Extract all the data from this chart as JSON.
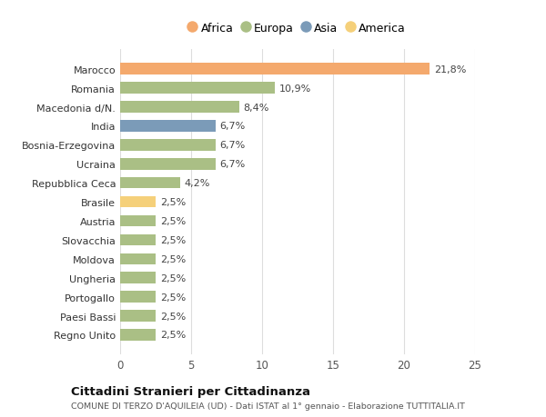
{
  "categories": [
    "Marocco",
    "Romania",
    "Macedonia d/N.",
    "India",
    "Bosnia-Erzegovina",
    "Ucraina",
    "Repubblica Ceca",
    "Brasile",
    "Austria",
    "Slovacchia",
    "Moldova",
    "Ungheria",
    "Portogallo",
    "Paesi Bassi",
    "Regno Unito"
  ],
  "values": [
    21.8,
    10.9,
    8.4,
    6.7,
    6.7,
    6.7,
    4.2,
    2.5,
    2.5,
    2.5,
    2.5,
    2.5,
    2.5,
    2.5,
    2.5
  ],
  "labels": [
    "21,8%",
    "10,9%",
    "8,4%",
    "6,7%",
    "6,7%",
    "6,7%",
    "4,2%",
    "2,5%",
    "2,5%",
    "2,5%",
    "2,5%",
    "2,5%",
    "2,5%",
    "2,5%",
    "2,5%"
  ],
  "colors": [
    "#F4A96D",
    "#AABF85",
    "#AABF85",
    "#7B9BB8",
    "#AABF85",
    "#AABF85",
    "#AABF85",
    "#F5D07A",
    "#AABF85",
    "#AABF85",
    "#AABF85",
    "#AABF85",
    "#AABF85",
    "#AABF85",
    "#AABF85"
  ],
  "legend": [
    {
      "label": "Africa",
      "color": "#F4A96D"
    },
    {
      "label": "Europa",
      "color": "#AABF85"
    },
    {
      "label": "Asia",
      "color": "#7B9BB8"
    },
    {
      "label": "America",
      "color": "#F5D07A"
    }
  ],
  "xlim": [
    0,
    25
  ],
  "xticks": [
    0,
    5,
    10,
    15,
    20,
    25
  ],
  "title": "Cittadini Stranieri per Cittadinanza",
  "subtitle": "COMUNE DI TERZO D'AQUILEIA (UD) - Dati ISTAT al 1° gennaio - Elaborazione TUTTITALIA.IT",
  "background_color": "#ffffff",
  "grid_color": "#dddddd",
  "label_fontsize": 8.0,
  "tick_fontsize": 8.5,
  "value_fontsize": 8.0
}
